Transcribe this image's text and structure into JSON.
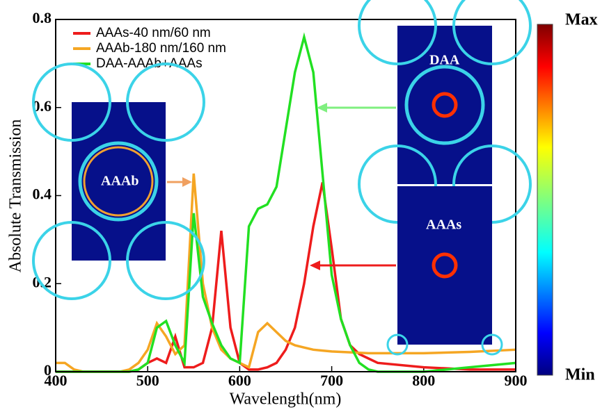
{
  "chart_data": {
    "type": "line",
    "xlabel": "Wavelength(nm)",
    "ylabel": "Absolute Transmission",
    "x": [
      400,
      410,
      420,
      430,
      440,
      450,
      460,
      470,
      480,
      490,
      500,
      510,
      520,
      530,
      540,
      550,
      560,
      570,
      580,
      590,
      600,
      610,
      620,
      630,
      640,
      650,
      660,
      670,
      680,
      690,
      700,
      710,
      720,
      730,
      740,
      750,
      800,
      850,
      900
    ],
    "series": [
      {
        "name": "AAAs-40 nm/60 nm",
        "color": "#ee1c1c",
        "values": [
          0,
          0,
          0,
          0,
          0,
          0,
          0,
          0,
          0,
          0.005,
          0.02,
          0.03,
          0.02,
          0.08,
          0.01,
          0.01,
          0.02,
          0.1,
          0.32,
          0.1,
          0.02,
          0.005,
          0.005,
          0.01,
          0.02,
          0.05,
          0.1,
          0.2,
          0.33,
          0.43,
          0.28,
          0.12,
          0.06,
          0.04,
          0.03,
          0.02,
          0.01,
          0.005,
          0.005
        ]
      },
      {
        "name": "AAAb-180 nm/160 nm",
        "color": "#f5a623",
        "values": [
          0.02,
          0.02,
          0.005,
          0,
          0,
          0,
          0,
          0,
          0.005,
          0.02,
          0.05,
          0.11,
          0.08,
          0.04,
          0.06,
          0.45,
          0.2,
          0.1,
          0.05,
          0.03,
          0.02,
          0.01,
          0.09,
          0.11,
          0.09,
          0.07,
          0.06,
          0.055,
          0.05,
          0.048,
          0.046,
          0.045,
          0.044,
          0.043,
          0.042,
          0.042,
          0.042,
          0.045,
          0.05
        ]
      },
      {
        "name": "DAA-AAAb+AAAs",
        "color": "#22e022",
        "values": [
          0,
          0,
          0,
          0,
          0,
          0,
          0,
          0,
          0,
          0.005,
          0.02,
          0.1,
          0.115,
          0.06,
          0.02,
          0.36,
          0.17,
          0.11,
          0.06,
          0.03,
          0.02,
          0.33,
          0.37,
          0.38,
          0.42,
          0.55,
          0.68,
          0.76,
          0.68,
          0.45,
          0.22,
          0.12,
          0.06,
          0.02,
          0.005,
          0,
          0,
          0.01,
          0.02
        ]
      }
    ],
    "xlim": [
      400,
      900
    ],
    "xticks": [
      400,
      500,
      600,
      700,
      800,
      900
    ],
    "ylim": [
      0,
      0.8
    ],
    "yticks": [
      0,
      0.2,
      0.4,
      0.6,
      0.8
    ],
    "annotations": [
      "AAAb",
      "DAA",
      "AAAs"
    ],
    "colorbar": {
      "max_label": "Max",
      "min_label": "Min"
    }
  }
}
